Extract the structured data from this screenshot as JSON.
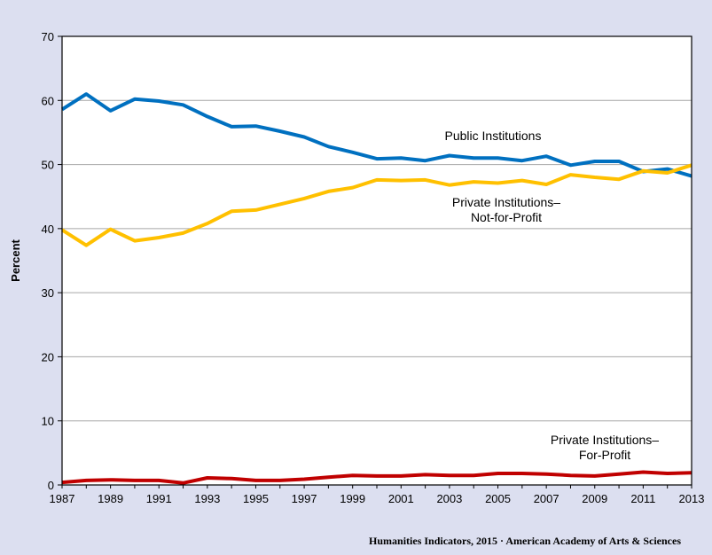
{
  "chart_data": {
    "type": "line",
    "ylabel": "Percent",
    "xlim": [
      1987,
      2013
    ],
    "ylim": [
      0,
      70
    ],
    "yticks": [
      "0",
      "10",
      "20",
      "30",
      "40",
      "50",
      "60",
      "70"
    ],
    "xticks": [
      "1987",
      "1989",
      "1991",
      "1993",
      "1995",
      "1997",
      "1999",
      "2001",
      "2003",
      "2005",
      "2007",
      "2009",
      "2011",
      "2013"
    ],
    "grid": true,
    "x": [
      1987,
      1988,
      1989,
      1990,
      1991,
      1992,
      1993,
      1994,
      1995,
      1996,
      1997,
      1998,
      1999,
      2000,
      2001,
      2002,
      2003,
      2004,
      2005,
      2006,
      2007,
      2008,
      2009,
      2010,
      2011,
      2012,
      2013
    ],
    "series": [
      {
        "name": "Public Institutions",
        "color": "#0070c0",
        "values": [
          58.6,
          61.0,
          58.4,
          60.2,
          59.9,
          59.3,
          57.5,
          55.9,
          56.0,
          55.2,
          54.3,
          52.8,
          51.9,
          50.9,
          51.0,
          50.6,
          51.4,
          51.0,
          51.0,
          50.6,
          51.3,
          49.9,
          50.5,
          50.5,
          48.9,
          49.3,
          48.2
        ]
      },
      {
        "name": "Private Institutions–Not-for-Profit",
        "color": "#ffc000",
        "values": [
          39.8,
          37.4,
          39.9,
          38.1,
          38.6,
          39.3,
          40.8,
          42.7,
          42.9,
          43.8,
          44.7,
          45.8,
          46.4,
          47.6,
          47.5,
          47.6,
          46.8,
          47.3,
          47.1,
          47.5,
          46.9,
          48.4,
          48.0,
          47.7,
          49.0,
          48.7,
          49.9
        ]
      },
      {
        "name": "Private Institutions–For-Profit",
        "color": "#c00000",
        "values": [
          0.4,
          0.7,
          0.8,
          0.7,
          0.7,
          0.3,
          1.1,
          1.0,
          0.7,
          0.7,
          0.9,
          1.2,
          1.5,
          1.4,
          1.4,
          1.6,
          1.5,
          1.5,
          1.8,
          1.8,
          1.7,
          1.5,
          1.4,
          1.7,
          2.0,
          1.8,
          1.9
        ]
      }
    ],
    "annotations": [
      {
        "lines": [
          "Public Institutions"
        ]
      },
      {
        "lines": [
          "Private Institutions–",
          "Not-for-Profit"
        ]
      },
      {
        "lines": [
          "Private Institutions–",
          "For-Profit"
        ]
      }
    ],
    "credit": "Humanities Indicators, 2015 · American Academy of Arts & Sciences"
  }
}
